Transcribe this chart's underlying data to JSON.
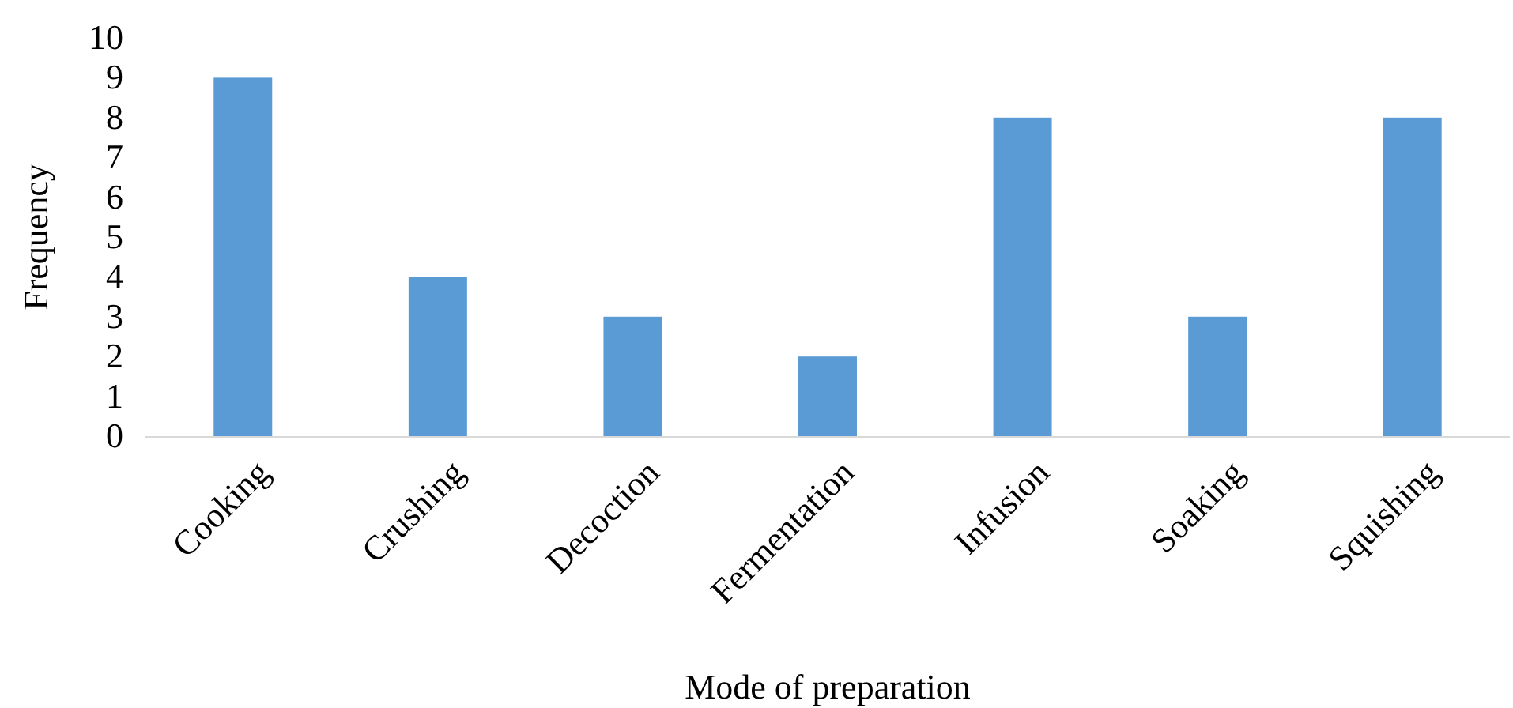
{
  "chart_data": {
    "type": "bar",
    "xlabel": "Mode of preparation",
    "ylabel": "Frequency",
    "categories": [
      "Cooking",
      "Crushing",
      "Decoction",
      "Fermentation",
      "Infusion",
      "Soaking",
      "Squishing"
    ],
    "values": [
      9,
      4,
      3,
      2,
      8,
      3,
      8
    ],
    "color": "#5b9bd5",
    "ylim": [
      0,
      10
    ],
    "yticks": [
      0,
      1,
      2,
      3,
      4,
      5,
      6,
      7,
      8,
      9,
      10
    ],
    "grid": false
  }
}
